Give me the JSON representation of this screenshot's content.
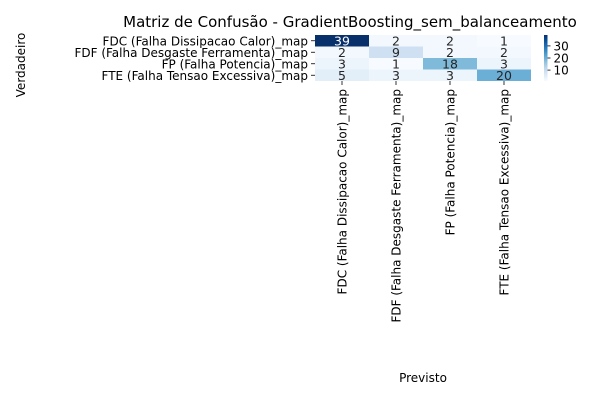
{
  "chart_data": {
    "type": "heatmap",
    "title": "Matriz de Confusão - GradientBoosting_sem_balanceamento",
    "xlabel": "Previsto",
    "ylabel": "Verdadeiro",
    "row_labels": [
      "FDC (Falha Dissipacao Calor)_map",
      "FDF (Falha Desgaste Ferramenta)_map",
      "FP (Falha Potencia)_map",
      "FTE (Falha Tensao Excessiva)_map"
    ],
    "col_labels": [
      "FDC (Falha Dissipacao Calor)_map",
      "FDF (Falha Desgaste Ferramenta)_map",
      "FP (Falha Potencia)_map",
      "FTE (Falha Tensao Excessiva)_map"
    ],
    "values": [
      [
        39,
        2,
        2,
        1
      ],
      [
        2,
        9,
        2,
        2
      ],
      [
        3,
        1,
        18,
        3
      ],
      [
        5,
        3,
        3,
        20
      ]
    ],
    "colormap": "Blues",
    "vmin": 1,
    "vmax": 39,
    "colorbar_ticks": [
      "10",
      "20",
      "30"
    ],
    "colorbar_tick_values": [
      10,
      20,
      30
    ]
  }
}
